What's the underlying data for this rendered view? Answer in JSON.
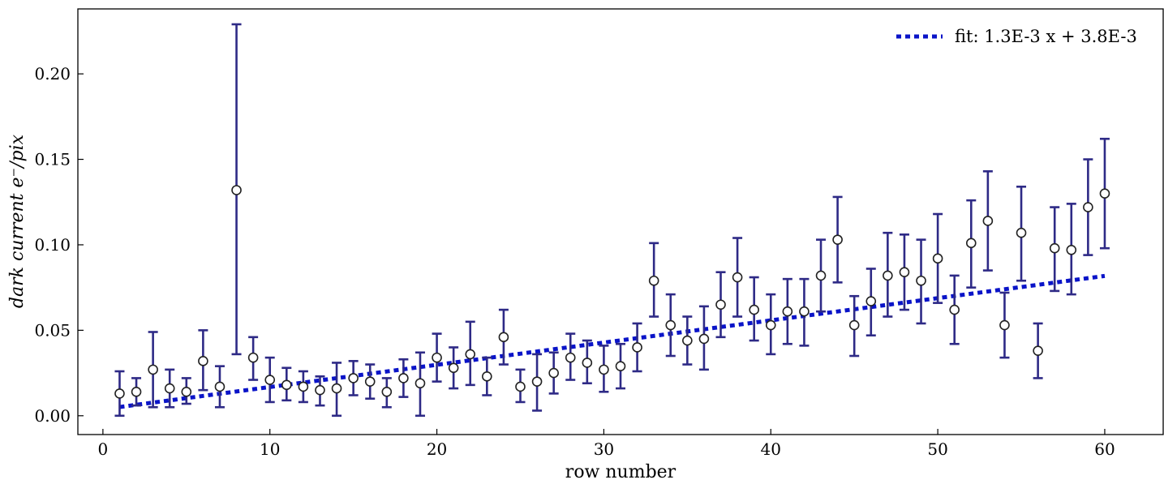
{
  "chart_data": {
    "type": "scatter",
    "xlabel": "row number",
    "ylabel": "dark current e⁻/pix",
    "xlim": [
      -1.5,
      63.5
    ],
    "ylim": [
      -0.011,
      0.238
    ],
    "xticks": [
      0,
      10,
      20,
      30,
      40,
      50,
      60
    ],
    "yticks": [
      0.0,
      0.05,
      0.1,
      0.15,
      0.2
    ],
    "xtick_labels": [
      "0",
      "10",
      "20",
      "30",
      "40",
      "50",
      "60"
    ],
    "ytick_labels": [
      "0.00",
      "0.05",
      "0.10",
      "0.15",
      "0.20"
    ],
    "grid": false,
    "legend_position": "top-right",
    "colors": {
      "errorbar": "#2e2a86",
      "fit": "#0a14c8",
      "marker_edge": "#222222",
      "marker_fill": "#ffffff"
    },
    "series": [
      {
        "kind": "errorbar",
        "x": [
          1,
          2,
          3,
          4,
          5,
          6,
          7,
          8,
          9,
          10,
          11,
          12,
          13,
          14,
          15,
          16,
          17,
          18,
          19,
          20,
          21,
          22,
          23,
          24,
          25,
          26,
          27,
          28,
          29,
          30,
          31,
          32,
          33,
          34,
          35,
          36,
          37,
          38,
          39,
          40,
          41,
          42,
          43,
          44,
          45,
          46,
          47,
          48,
          49,
          50,
          51,
          52,
          53,
          54,
          55,
          56,
          57,
          58,
          59,
          60
        ],
        "y": [
          0.013,
          0.014,
          0.027,
          0.016,
          0.014,
          0.032,
          0.017,
          0.132,
          0.034,
          0.021,
          0.018,
          0.017,
          0.015,
          0.016,
          0.022,
          0.02,
          0.014,
          0.022,
          0.019,
          0.034,
          0.028,
          0.036,
          0.023,
          0.046,
          0.017,
          0.02,
          0.025,
          0.034,
          0.031,
          0.027,
          0.029,
          0.04,
          0.079,
          0.053,
          0.044,
          0.045,
          0.065,
          0.081,
          0.062,
          0.053,
          0.061,
          0.061,
          0.082,
          0.103,
          0.053,
          0.067,
          0.082,
          0.084,
          0.079,
          0.092,
          0.062,
          0.101,
          0.114,
          0.053,
          0.107,
          0.038,
          0.098,
          0.097,
          0.122,
          0.13
        ],
        "err_low": [
          0.0,
          0.006,
          0.005,
          0.005,
          0.007,
          0.015,
          0.005,
          0.036,
          0.021,
          0.008,
          0.009,
          0.008,
          0.006,
          0.0,
          0.012,
          0.01,
          0.005,
          0.011,
          0.0,
          0.02,
          0.016,
          0.018,
          0.012,
          0.03,
          0.008,
          0.003,
          0.013,
          0.021,
          0.019,
          0.014,
          0.016,
          0.026,
          0.058,
          0.035,
          0.03,
          0.027,
          0.046,
          0.058,
          0.044,
          0.036,
          0.042,
          0.041,
          0.061,
          0.078,
          0.035,
          0.047,
          0.058,
          0.062,
          0.054,
          0.066,
          0.042,
          0.075,
          0.085,
          0.034,
          0.079,
          0.022,
          0.073,
          0.071,
          0.094,
          0.098
        ],
        "err_high": [
          0.026,
          0.022,
          0.049,
          0.027,
          0.022,
          0.05,
          0.029,
          0.229,
          0.046,
          0.034,
          0.028,
          0.026,
          0.023,
          0.031,
          0.032,
          0.03,
          0.022,
          0.033,
          0.037,
          0.048,
          0.04,
          0.055,
          0.034,
          0.062,
          0.027,
          0.036,
          0.037,
          0.048,
          0.044,
          0.041,
          0.042,
          0.054,
          0.101,
          0.071,
          0.058,
          0.064,
          0.084,
          0.104,
          0.081,
          0.071,
          0.08,
          0.08,
          0.103,
          0.128,
          0.07,
          0.086,
          0.107,
          0.106,
          0.103,
          0.118,
          0.082,
          0.126,
          0.143,
          0.072,
          0.134,
          0.054,
          0.122,
          0.124,
          0.15,
          0.162
        ]
      },
      {
        "kind": "line",
        "name": "fit: 1.3E-3 x + 3.8E-3",
        "slope": 0.0013,
        "intercept": 0.0038,
        "x_range": [
          1,
          60
        ]
      }
    ]
  }
}
